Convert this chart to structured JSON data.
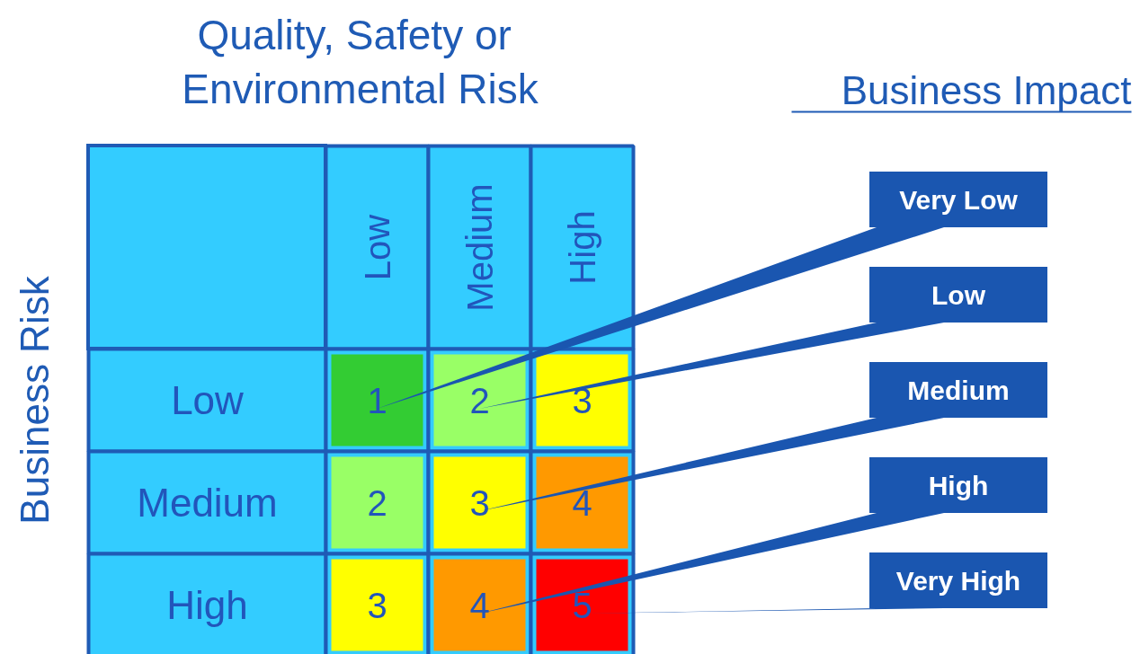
{
  "chart_data": {
    "type": "heatmap",
    "xlabel": "Quality,  Safety or\nEnvironmental Risk",
    "ylabel": "Business Risk",
    "legend_title": "Business Impact",
    "categories": [
      "Low",
      "Medium",
      "High"
    ],
    "y_categories": [
      "Low",
      "Medium",
      "High"
    ],
    "cells": [
      [
        1,
        2,
        3
      ],
      [
        2,
        3,
        4
      ],
      [
        3,
        4,
        5
      ]
    ],
    "colors": [
      "#33cc33",
      "#99ff66",
      "#ffff00",
      "#99ff66",
      "#ffff00",
      "#ff9900",
      "#ffff00",
      "#ff9900",
      "#ff0000"
    ],
    "data_labels": true,
    "annotations": [
      "Very Low",
      "Low",
      "Medium",
      "High",
      "Very High"
    ]
  }
}
